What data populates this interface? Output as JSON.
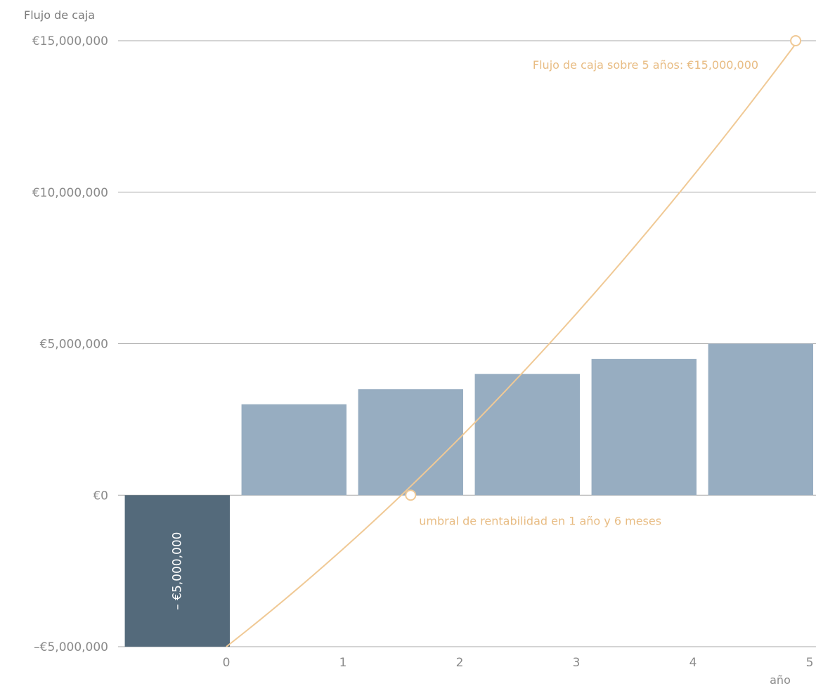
{
  "chart_data": {
    "type": "bar",
    "ylabel": "Flujo de caja",
    "xlabel": "año",
    "x_ticks": [
      "0",
      "1",
      "2",
      "3",
      "4",
      "5"
    ],
    "y_ticks": [
      {
        "value": 15000000,
        "label": "€15,000,000"
      },
      {
        "value": 10000000,
        "label": "€10,000,000"
      },
      {
        "value": 5000000,
        "label": "€5,000,000"
      },
      {
        "value": 0,
        "label": "€0"
      },
      {
        "value": -5000000,
        "label": "–€5,000,000"
      }
    ],
    "ylim": [
      -5000000,
      15000000
    ],
    "xlim": [
      -0.9,
      5.05
    ],
    "bars": [
      {
        "x_start": -0.87,
        "x_end": 0.03,
        "value": -5000000,
        "color": "#546a7b",
        "label": "– €5,000,000"
      },
      {
        "x_start": 0.13,
        "x_end": 1.03,
        "value": 3000000,
        "color": "#97adc1"
      },
      {
        "x_start": 1.13,
        "x_end": 2.03,
        "value": 3500000,
        "color": "#97adc1"
      },
      {
        "x_start": 2.13,
        "x_end": 3.03,
        "value": 4000000,
        "color": "#97adc1"
      },
      {
        "x_start": 3.13,
        "x_end": 4.03,
        "value": 4500000,
        "color": "#97adc1"
      },
      {
        "x_start": 4.13,
        "x_end": 5.03,
        "value": 5000000,
        "color": "#97adc1"
      }
    ],
    "cumulative_line": {
      "color": "#f0c995",
      "points": [
        [
          0,
          -5000000
        ],
        [
          1.5,
          0
        ],
        [
          4.9,
          15000000
        ]
      ],
      "markers": [
        {
          "x": 1.58,
          "y": 0,
          "label": "umbral de rentabilidad en 1 año y 6 meses"
        },
        {
          "x": 4.88,
          "y": 15000000,
          "label": "Flujo de caja sobre 5 años: €15,000,000"
        }
      ]
    },
    "grid": true
  }
}
